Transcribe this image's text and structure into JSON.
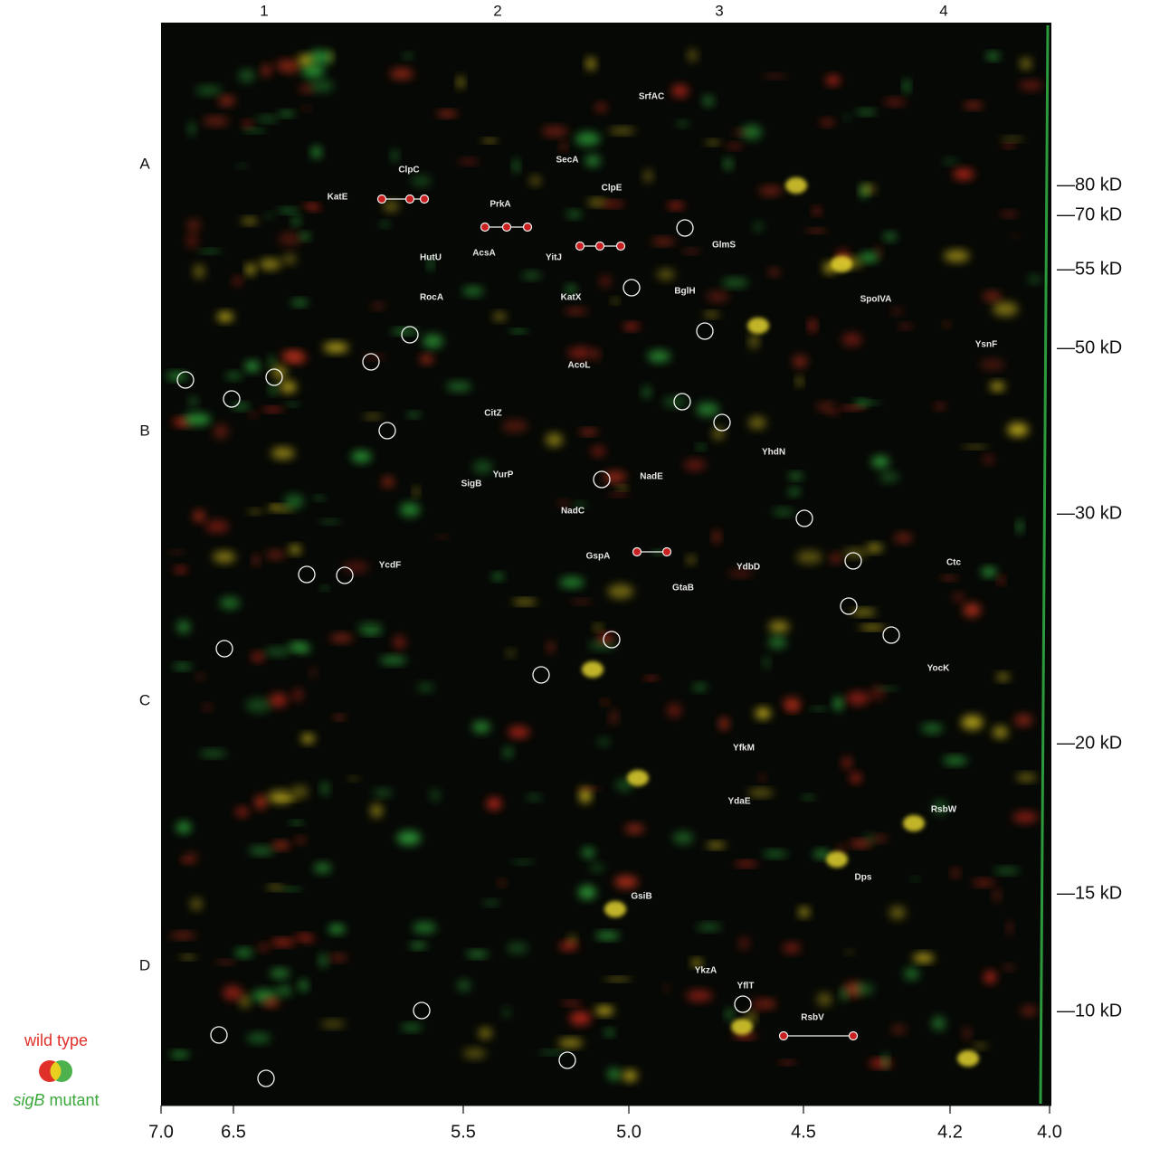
{
  "column_labels": [
    "1",
    "2",
    "3",
    "4"
  ],
  "row_labels": [
    "A",
    "B",
    "C",
    "D"
  ],
  "mw_labels": [
    "—80 kD",
    "—70 kD",
    "—55 kD",
    "—50 kD",
    "—30 kD",
    "—20 kD",
    "—15 kD",
    "—10 kD"
  ],
  "ph_labels": [
    "7.0",
    "6.5",
    "5.5",
    "5.0",
    "4.5",
    "4.2",
    "4.0"
  ],
  "proteins": [
    "SrfAC",
    "SecA",
    "ClpC",
    "KatE",
    "ClpE",
    "PrkA",
    "YitJ",
    "GlmS",
    "HutU",
    "AcsA",
    "RocA",
    "KatX",
    "BglH",
    "SpoIVA",
    "AcoL",
    "YsnF",
    "CitZ",
    "YhdN",
    "SigB",
    "YurP",
    "NadE",
    "NadC",
    "GspA",
    "YdbD",
    "GtaB",
    "YcdF",
    "Ctc",
    "YocK",
    "YfkM",
    "YdaE",
    "RsbW",
    "Dps",
    "GsiB",
    "YkzA",
    "YflT",
    "RsbV"
  ],
  "legend": {
    "wild_type": "wild type",
    "mutant_gene": "sigB",
    "mutant_suffix": "mutant"
  }
}
